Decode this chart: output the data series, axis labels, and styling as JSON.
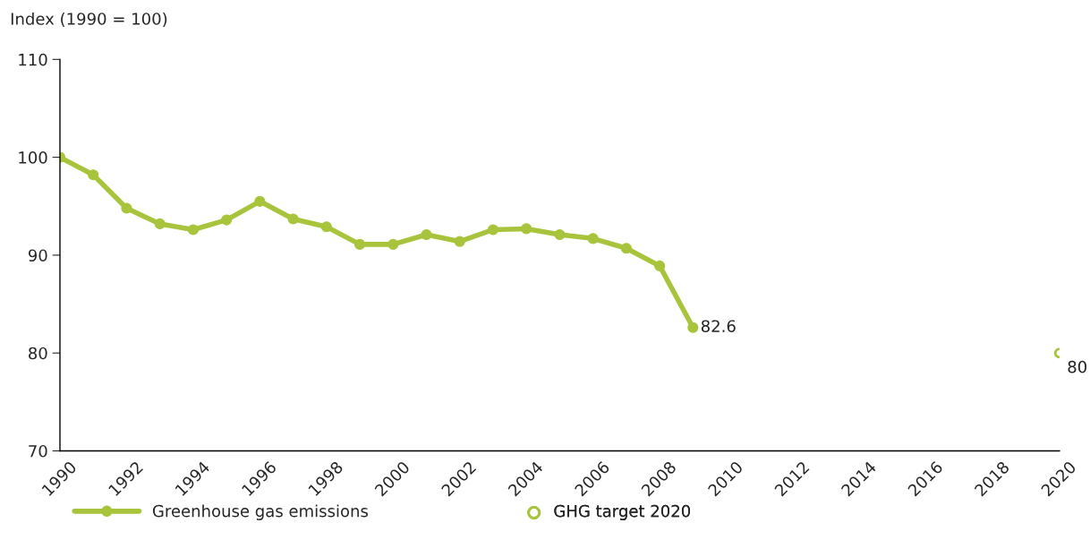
{
  "chart_data": {
    "type": "line",
    "ylabel": "Index (1990 = 100)",
    "series": [
      {
        "name": "Greenhouse gas emissions",
        "color": "#a8c43c",
        "marker": "circle",
        "x": [
          1990,
          1991,
          1992,
          1993,
          1994,
          1995,
          1996,
          1997,
          1998,
          1999,
          2000,
          2001,
          2002,
          2003,
          2004,
          2005,
          2006,
          2007,
          2008,
          2009
        ],
        "values": [
          100,
          98.2,
          94.8,
          93.2,
          92.6,
          93.6,
          95.5,
          93.7,
          92.9,
          91.1,
          91.1,
          92.1,
          91.4,
          92.6,
          92.7,
          92.1,
          91.7,
          90.7,
          88.9,
          82.6
        ],
        "value_labels": [
          null,
          null,
          null,
          null,
          null,
          null,
          null,
          null,
          null,
          null,
          null,
          null,
          null,
          null,
          null,
          null,
          null,
          null,
          null,
          "82.6"
        ]
      },
      {
        "name": "GHG target 2020",
        "type": "scatter",
        "color": "#a8c43c",
        "marker": "circle",
        "x": [
          2020
        ],
        "values": [
          80
        ],
        "value_labels": [
          "80"
        ]
      }
    ],
    "xlim": [
      1990,
      2020
    ],
    "xticks": [
      1990,
      1992,
      1994,
      1996,
      1998,
      2000,
      2002,
      2004,
      2006,
      2008,
      2010,
      2012,
      2014,
      2016,
      2018,
      2020
    ],
    "ylim": [
      70,
      110
    ],
    "yticks": [
      70,
      80,
      90,
      100,
      110
    ],
    "grid": false,
    "legend": "bottom"
  }
}
